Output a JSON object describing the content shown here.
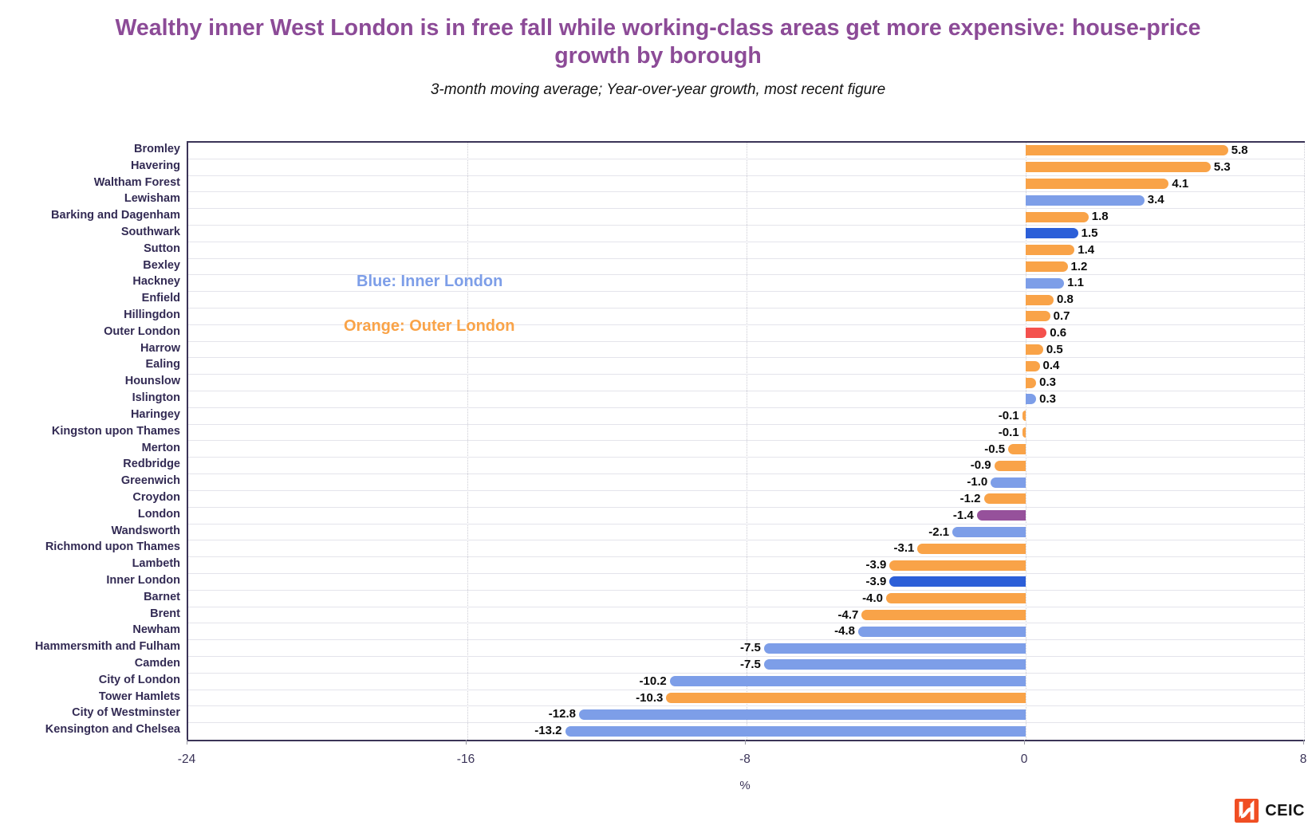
{
  "header": {
    "title": "Wealthy inner West London is in free fall while working-class areas get more expensive: house-price growth by borough",
    "subtitle": "3-month moving average; Year-over-year growth, most recent figure"
  },
  "annotations": {
    "inner": {
      "text": "Blue: Inner London",
      "color": "#7D9EE8"
    },
    "outer": {
      "text": "Orange: Outer London",
      "color": "#F9A348"
    }
  },
  "chart_data": {
    "type": "bar",
    "orientation": "horizontal",
    "title": "Wealthy inner West London is in free fall while working-class areas get more expensive: house-price growth by borough",
    "subtitle": "3-month moving average; Year-over-year growth, most recent figure",
    "xlabel": "%",
    "xlim": [
      -24,
      8
    ],
    "xticks": [
      {
        "label": "-24",
        "value": -24
      },
      {
        "label": "-16",
        "value": -16
      },
      {
        "label": "-8",
        "value": -8
      },
      {
        "label": "0",
        "value": 0
      },
      {
        "label": "8",
        "value": 8
      }
    ],
    "gridlines": [
      -16,
      -8,
      0,
      8
    ],
    "grid": "vertical dotted",
    "legend_position": "in-plot text annotations",
    "palette": {
      "orange": "#F9A348",
      "lightblue": "#7D9EE8",
      "darkblue": "#2C5FD8",
      "red": "#F4514D",
      "purple": "#96519B"
    },
    "bars": [
      {
        "label": "Bromley",
        "value": 5.8,
        "display": "5.8",
        "color": "orange"
      },
      {
        "label": "Havering",
        "value": 5.3,
        "display": "5.3",
        "color": "orange"
      },
      {
        "label": "Waltham Forest",
        "value": 4.1,
        "display": "4.1",
        "color": "orange"
      },
      {
        "label": "Lewisham",
        "value": 3.4,
        "display": "3.4",
        "color": "lightblue"
      },
      {
        "label": "Barking and Dagenham",
        "value": 1.8,
        "display": "1.8",
        "color": "orange"
      },
      {
        "label": "Southwark",
        "value": 1.5,
        "display": "1.5",
        "color": "darkblue"
      },
      {
        "label": "Sutton",
        "value": 1.4,
        "display": "1.4",
        "color": "orange"
      },
      {
        "label": "Bexley",
        "value": 1.2,
        "display": "1.2",
        "color": "orange"
      },
      {
        "label": "Hackney",
        "value": 1.1,
        "display": "1.1",
        "color": "lightblue"
      },
      {
        "label": "Enfield",
        "value": 0.8,
        "display": "0.8",
        "color": "orange"
      },
      {
        "label": "Hillingdon",
        "value": 0.7,
        "display": "0.7",
        "color": "orange"
      },
      {
        "label": "Outer London",
        "value": 0.6,
        "display": "0.6",
        "color": "red"
      },
      {
        "label": "Harrow",
        "value": 0.5,
        "display": "0.5",
        "color": "orange"
      },
      {
        "label": "Ealing",
        "value": 0.4,
        "display": "0.4",
        "color": "orange"
      },
      {
        "label": "Hounslow",
        "value": 0.3,
        "display": "0.3",
        "color": "orange"
      },
      {
        "label": "Islington",
        "value": 0.3,
        "display": "0.3",
        "color": "lightblue"
      },
      {
        "label": "Haringey",
        "value": -0.1,
        "display": "-0.1",
        "color": "orange"
      },
      {
        "label": "Kingston upon Thames",
        "value": -0.1,
        "display": "-0.1",
        "color": "orange"
      },
      {
        "label": "Merton",
        "value": -0.5,
        "display": "-0.5",
        "color": "orange"
      },
      {
        "label": "Redbridge",
        "value": -0.9,
        "display": "-0.9",
        "color": "orange"
      },
      {
        "label": "Greenwich",
        "value": -1.0,
        "display": "-1.0",
        "color": "lightblue"
      },
      {
        "label": "Croydon",
        "value": -1.2,
        "display": "-1.2",
        "color": "orange"
      },
      {
        "label": "London",
        "value": -1.4,
        "display": "-1.4",
        "color": "purple"
      },
      {
        "label": "Wandsworth",
        "value": -2.1,
        "display": "-2.1",
        "color": "lightblue"
      },
      {
        "label": "Richmond upon Thames",
        "value": -3.1,
        "display": "-3.1",
        "color": "orange"
      },
      {
        "label": "Lambeth",
        "value": -3.9,
        "display": "-3.9",
        "color": "orange"
      },
      {
        "label": "Inner London",
        "value": -3.9,
        "display": "-3.9",
        "color": "darkblue"
      },
      {
        "label": "Barnet",
        "value": -4.0,
        "display": "-4.0",
        "color": "orange"
      },
      {
        "label": "Brent",
        "value": -4.7,
        "display": "-4.7",
        "color": "orange"
      },
      {
        "label": "Newham",
        "value": -4.8,
        "display": "-4.8",
        "color": "lightblue"
      },
      {
        "label": "Hammersmith and Fulham",
        "value": -7.5,
        "display": "-7.5",
        "color": "lightblue"
      },
      {
        "label": "Camden",
        "value": -7.5,
        "display": "-7.5",
        "color": "lightblue"
      },
      {
        "label": "City of London",
        "value": -10.2,
        "display": "-10.2",
        "color": "lightblue"
      },
      {
        "label": "Tower Hamlets",
        "value": -10.3,
        "display": "-10.3",
        "color": "orange"
      },
      {
        "label": "City of Westminster",
        "value": -12.8,
        "display": "-12.8",
        "color": "lightblue"
      },
      {
        "label": "Kensington and Chelsea",
        "value": -13.2,
        "display": "-13.2",
        "color": "lightblue"
      }
    ]
  },
  "footer": {
    "brand": "CEIC",
    "logo_color": "#F04E23"
  }
}
